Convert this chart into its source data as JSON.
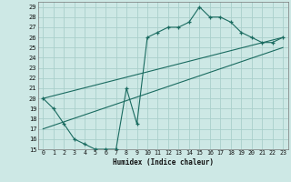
{
  "title": "",
  "xlabel": "Humidex (Indice chaleur)",
  "bg_color": "#cde8e5",
  "grid_color": "#aacfcb",
  "line_color": "#1a6b60",
  "xlim": [
    -0.5,
    23.5
  ],
  "ylim": [
    15,
    29.5
  ],
  "xticks": [
    0,
    1,
    2,
    3,
    4,
    5,
    6,
    7,
    8,
    9,
    10,
    11,
    12,
    13,
    14,
    15,
    16,
    17,
    18,
    19,
    20,
    21,
    22,
    23
  ],
  "yticks": [
    15,
    16,
    17,
    18,
    19,
    20,
    21,
    22,
    23,
    24,
    25,
    26,
    27,
    28,
    29
  ],
  "line1_x": [
    0,
    1,
    2,
    3,
    4,
    5,
    6,
    7,
    8,
    9,
    10,
    11,
    12,
    13,
    14,
    15,
    16,
    17,
    18,
    19,
    20,
    21,
    22,
    23
  ],
  "line1_y": [
    20,
    19,
    17.5,
    16,
    15.5,
    15,
    15,
    15,
    21,
    17.5,
    26,
    26.5,
    27,
    27,
    27.5,
    29,
    28,
    28,
    27.5,
    26.5,
    26,
    25.5,
    25.5,
    26
  ],
  "line2_x": [
    0,
    23
  ],
  "line2_y": [
    20,
    26
  ],
  "line3_x": [
    0,
    23
  ],
  "line3_y": [
    17,
    25
  ],
  "marker": "+"
}
